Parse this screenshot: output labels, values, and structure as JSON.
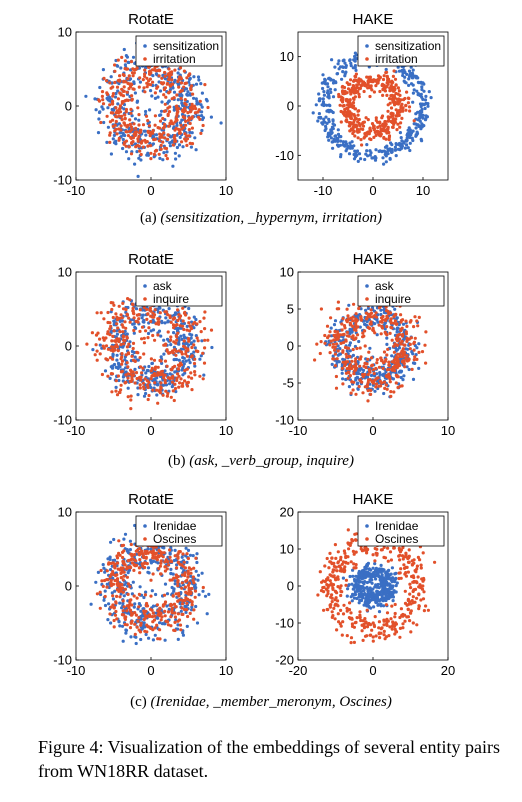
{
  "figure_caption": "Figure 4: Visualization of the embeddings of several entity pairs from WN18RR dataset.",
  "colors": {
    "series_1": "#3a6fc4",
    "series_2": "#e2502a"
  },
  "subfigures": [
    {
      "label": "(a)",
      "caption_text": "(sensitization, _hypernym, irritation)"
    },
    {
      "label": "(b)",
      "caption_text": "(ask, _verb_group, inquire)"
    },
    {
      "label": "(c)",
      "caption_text": "(Irenidae, _member_meronym, Oscines)"
    }
  ],
  "chart_data": [
    {
      "type": "scatter",
      "title": "RotatE",
      "xlim": [
        -10,
        10
      ],
      "ylim": [
        -10,
        10
      ],
      "xticks": [
        -10,
        0,
        10
      ],
      "yticks": [
        -10,
        0,
        10
      ],
      "grid": false,
      "legend": "top-right",
      "series": [
        {
          "name": "sensitization",
          "color": "#3a6fc4",
          "radius_mean": 5.2,
          "radius_sd": 1.6,
          "n": 420
        },
        {
          "name": "irritation",
          "color": "#e2502a",
          "radius_mean": 4.8,
          "radius_sd": 1.3,
          "n": 420
        }
      ]
    },
    {
      "type": "scatter",
      "title": "HAKE",
      "xlim": [
        -15,
        15
      ],
      "ylim": [
        -15,
        15
      ],
      "xticks": [
        -10,
        0,
        10
      ],
      "yticks": [
        -10,
        0,
        10
      ],
      "grid": false,
      "legend": "top-right",
      "series": [
        {
          "name": "sensitization",
          "color": "#3a6fc4",
          "radius_mean": 10.0,
          "radius_sd": 0.9,
          "n": 420
        },
        {
          "name": "irritation",
          "color": "#e2502a",
          "radius_mean": 5.2,
          "radius_sd": 1.1,
          "n": 420
        }
      ]
    },
    {
      "type": "scatter",
      "title": "RotatE",
      "xlim": [
        -10,
        10
      ],
      "ylim": [
        -10,
        10
      ],
      "xticks": [
        -10,
        0,
        10
      ],
      "yticks": [
        -10,
        0,
        10
      ],
      "grid": false,
      "legend": "top-right",
      "series": [
        {
          "name": "ask",
          "color": "#3a6fc4",
          "radius_mean": 4.8,
          "radius_sd": 1.2,
          "n": 420
        },
        {
          "name": "inquire",
          "color": "#e2502a",
          "radius_mean": 5.2,
          "radius_sd": 1.7,
          "n": 420
        }
      ]
    },
    {
      "type": "scatter",
      "title": "HAKE",
      "xlim": [
        -10,
        10
      ],
      "ylim": [
        -10,
        10
      ],
      "xticks": [
        -10,
        0,
        10
      ],
      "yticks": [
        -10,
        -5,
        0,
        5,
        10
      ],
      "grid": false,
      "legend": "top-right",
      "series": [
        {
          "name": "ask",
          "color": "#3a6fc4",
          "radius_mean": 4.5,
          "radius_sd": 1.1,
          "n": 420
        },
        {
          "name": "inquire",
          "color": "#e2502a",
          "radius_mean": 4.5,
          "radius_sd": 1.3,
          "n": 420
        }
      ]
    },
    {
      "type": "scatter",
      "title": "RotatE",
      "xlim": [
        -10,
        10
      ],
      "ylim": [
        -10,
        10
      ],
      "xticks": [
        -10,
        0,
        10
      ],
      "yticks": [
        -10,
        0,
        10
      ],
      "grid": false,
      "legend": "top-right",
      "series": [
        {
          "name": "Irenidae",
          "color": "#3a6fc4",
          "radius_mean": 5.0,
          "radius_sd": 1.5,
          "n": 420
        },
        {
          "name": "Oscines",
          "color": "#e2502a",
          "radius_mean": 4.8,
          "radius_sd": 1.2,
          "n": 420
        }
      ]
    },
    {
      "type": "scatter",
      "title": "HAKE",
      "xlim": [
        -20,
        20
      ],
      "ylim": [
        -20,
        20
      ],
      "xticks": [
        -20,
        0,
        20
      ],
      "yticks": [
        -20,
        -10,
        0,
        10,
        20
      ],
      "grid": false,
      "legend": "top-right",
      "series": [
        {
          "name": "Irenidae",
          "color": "#3a6fc4",
          "radius_mean": 4.0,
          "radius_sd": 1.3,
          "n": 420
        },
        {
          "name": "Oscines",
          "color": "#e2502a",
          "radius_mean": 11.5,
          "radius_sd": 2.0,
          "n": 420
        }
      ]
    }
  ]
}
